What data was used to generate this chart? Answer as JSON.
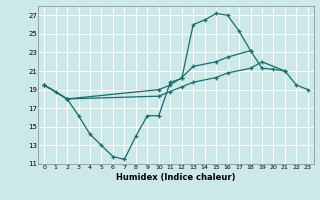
{
  "xlabel": "Humidex (Indice chaleur)",
  "bg_color": "#cce8e8",
  "line_color": "#1a6b6b",
  "grid_color": "#ffffff",
  "xlim": [
    -0.5,
    23.5
  ],
  "ylim": [
    11,
    28
  ],
  "yticks": [
    11,
    13,
    15,
    17,
    19,
    21,
    23,
    25,
    27
  ],
  "xticks": [
    0,
    1,
    2,
    3,
    4,
    5,
    6,
    7,
    8,
    9,
    10,
    11,
    12,
    13,
    14,
    15,
    16,
    17,
    18,
    19,
    20,
    21,
    22,
    23
  ],
  "line1_x": [
    0,
    1,
    2,
    3,
    4,
    5,
    6,
    7,
    8,
    9,
    10,
    11,
    12,
    13,
    14,
    15,
    16,
    17,
    18
  ],
  "line1_y": [
    19.5,
    18.8,
    18.0,
    16.2,
    14.2,
    13.0,
    11.8,
    11.5,
    14.0,
    16.2,
    16.2,
    19.8,
    20.2,
    26.0,
    26.5,
    27.2,
    27.0,
    25.3,
    23.2
  ],
  "line2_x": [
    0,
    2,
    10,
    11,
    12,
    13,
    15,
    16,
    18,
    19,
    20,
    21
  ],
  "line2_y": [
    19.5,
    18.0,
    19.0,
    19.5,
    20.3,
    21.5,
    22.0,
    22.5,
    23.2,
    21.3,
    21.2,
    21.0
  ],
  "line3_x": [
    0,
    2,
    10,
    11,
    12,
    13,
    15,
    16,
    18,
    19,
    21,
    22,
    23
  ],
  "line3_y": [
    19.5,
    18.0,
    18.3,
    18.8,
    19.3,
    19.8,
    20.3,
    20.8,
    21.3,
    22.0,
    21.0,
    19.5,
    19.0
  ]
}
